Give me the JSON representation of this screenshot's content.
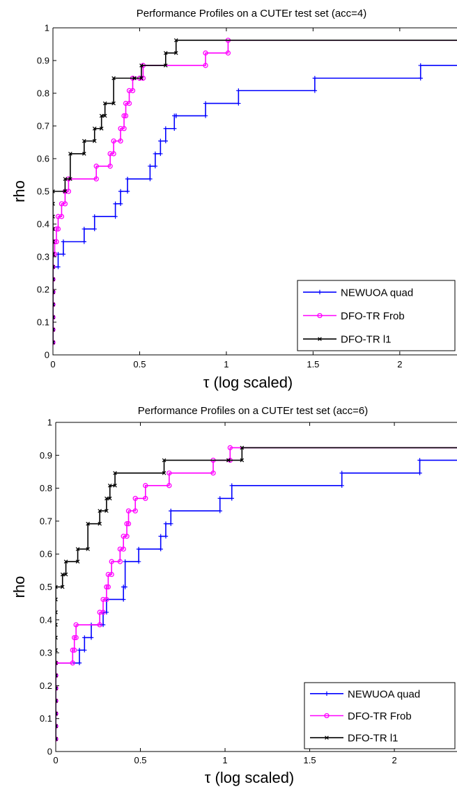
{
  "chart_data": [
    {
      "type": "line",
      "title": "Performance Profiles on a CUTEr test set (acc=4)",
      "xlabel": "τ (log scaled)",
      "ylabel": "rho",
      "xlim": [
        0,
        2.33
      ],
      "ylim": [
        0,
        1
      ],
      "xticks": [
        0,
        0.5,
        1,
        1.5,
        2
      ],
      "xtick_labels": [
        "0",
        "0.5",
        "1",
        "1.5",
        "2"
      ],
      "yticks": [
        0,
        0.1,
        0.2,
        0.3,
        0.4,
        0.5,
        0.6,
        0.7,
        0.8,
        0.9,
        1
      ],
      "ytick_labels": [
        "0",
        "0.1",
        "0.2",
        "0.3",
        "0.4",
        "0.5",
        "0.6",
        "0.7",
        "0.8",
        "0.9",
        "1"
      ],
      "grid": false,
      "legend_position": "bottom-right",
      "series": [
        {
          "name": "NEWUOA quad",
          "color": "#0000ff",
          "marker": "plus",
          "x": [
            0,
            0,
            0,
            0,
            0,
            0,
            0,
            0.03,
            0.06,
            0.18,
            0.24,
            0.36,
            0.39,
            0.43,
            0.56,
            0.59,
            0.62,
            0.65,
            0.7,
            0.71,
            0.88,
            1.07,
            1.51,
            2.12
          ],
          "y": [
            0.038,
            0.077,
            0.115,
            0.154,
            0.192,
            0.231,
            0.269,
            0.308,
            0.346,
            0.385,
            0.423,
            0.462,
            0.5,
            0.538,
            0.577,
            0.615,
            0.654,
            0.692,
            0.731,
            0.731,
            0.769,
            0.808,
            0.846,
            0.885
          ]
        },
        {
          "name": "DFO-TR Frob",
          "color": "#ff00ff",
          "marker": "circle",
          "x": [
            0,
            0,
            0,
            0,
            0,
            0,
            0,
            0,
            0.01,
            0.02,
            0.03,
            0.05,
            0.07,
            0.09,
            0.25,
            0.33,
            0.35,
            0.39,
            0.41,
            0.42,
            0.44,
            0.46,
            0.5,
            0.52,
            0.88,
            1.01
          ],
          "y": [
            0.038,
            0.077,
            0.115,
            0.154,
            0.192,
            0.231,
            0.269,
            0.308,
            0.346,
            0.385,
            0.423,
            0.462,
            0.5,
            0.538,
            0.577,
            0.615,
            0.654,
            0.692,
            0.731,
            0.769,
            0.808,
            0.846,
            0.846,
            0.885,
            0.923,
            0.962
          ]
        },
        {
          "name": "DFO-TR l1",
          "color": "#000000",
          "marker": "x",
          "x": [
            0,
            0,
            0,
            0,
            0,
            0,
            0,
            0,
            0,
            0,
            0,
            0,
            0,
            0.07,
            0.1,
            0.18,
            0.24,
            0.28,
            0.3,
            0.35,
            0.47,
            0.51,
            0.65,
            0.71
          ],
          "y": [
            0.038,
            0.077,
            0.115,
            0.154,
            0.192,
            0.231,
            0.269,
            0.308,
            0.346,
            0.385,
            0.423,
            0.462,
            0.5,
            0.538,
            0.615,
            0.654,
            0.692,
            0.731,
            0.769,
            0.846,
            0.846,
            0.885,
            0.923,
            0.962
          ]
        }
      ]
    },
    {
      "type": "line",
      "title": "Performance Profiles on a CUTEr test set (acc=6)",
      "xlabel": "τ (log scaled)",
      "ylabel": "rho",
      "xlim": [
        0,
        2.37
      ],
      "ylim": [
        0,
        1
      ],
      "xticks": [
        0,
        0.5,
        1,
        1.5,
        2
      ],
      "xtick_labels": [
        "0",
        "0.5",
        "1",
        "1.5",
        "2"
      ],
      "yticks": [
        0,
        0.1,
        0.2,
        0.3,
        0.4,
        0.5,
        0.6,
        0.7,
        0.8,
        0.9,
        1
      ],
      "ytick_labels": [
        "0",
        "0.1",
        "0.2",
        "0.3",
        "0.4",
        "0.5",
        "0.6",
        "0.7",
        "0.8",
        "0.9",
        "1"
      ],
      "grid": false,
      "legend_position": "bottom-right",
      "series": [
        {
          "name": "NEWUOA quad",
          "color": "#0000ff",
          "marker": "plus",
          "x": [
            0,
            0,
            0,
            0,
            0,
            0,
            0,
            0.14,
            0.17,
            0.21,
            0.28,
            0.3,
            0.4,
            0.41,
            0.49,
            0.62,
            0.65,
            0.68,
            0.97,
            1.04,
            1.69,
            2.15
          ],
          "y": [
            0.038,
            0.077,
            0.115,
            0.154,
            0.192,
            0.231,
            0.269,
            0.308,
            0.346,
            0.385,
            0.423,
            0.462,
            0.5,
            0.577,
            0.615,
            0.654,
            0.692,
            0.731,
            0.769,
            0.808,
            0.846,
            0.885
          ]
        },
        {
          "name": "DFO-TR Frob",
          "color": "#ff00ff",
          "marker": "circle",
          "x": [
            0,
            0,
            0,
            0,
            0,
            0,
            0,
            0.1,
            0.11,
            0.12,
            0.26,
            0.28,
            0.3,
            0.31,
            0.33,
            0.38,
            0.4,
            0.42,
            0.43,
            0.47,
            0.53,
            0.67,
            0.93,
            1.03
          ],
          "y": [
            0.038,
            0.077,
            0.115,
            0.154,
            0.192,
            0.231,
            0.269,
            0.308,
            0.346,
            0.385,
            0.423,
            0.462,
            0.5,
            0.538,
            0.577,
            0.615,
            0.654,
            0.692,
            0.731,
            0.769,
            0.808,
            0.846,
            0.885,
            0.923
          ]
        },
        {
          "name": "DFO-TR l1",
          "color": "#000000",
          "marker": "x",
          "x": [
            0,
            0,
            0,
            0,
            0,
            0,
            0,
            0,
            0,
            0,
            0,
            0,
            0,
            0.04,
            0.06,
            0.13,
            0.19,
            0.26,
            0.3,
            0.32,
            0.35,
            0.64,
            1.02,
            1.1
          ],
          "y": [
            0.038,
            0.077,
            0.115,
            0.154,
            0.192,
            0.231,
            0.269,
            0.308,
            0.346,
            0.385,
            0.423,
            0.462,
            0.5,
            0.538,
            0.577,
            0.615,
            0.692,
            0.731,
            0.769,
            0.808,
            0.846,
            0.885,
            0.885,
            0.923
          ]
        }
      ]
    }
  ]
}
